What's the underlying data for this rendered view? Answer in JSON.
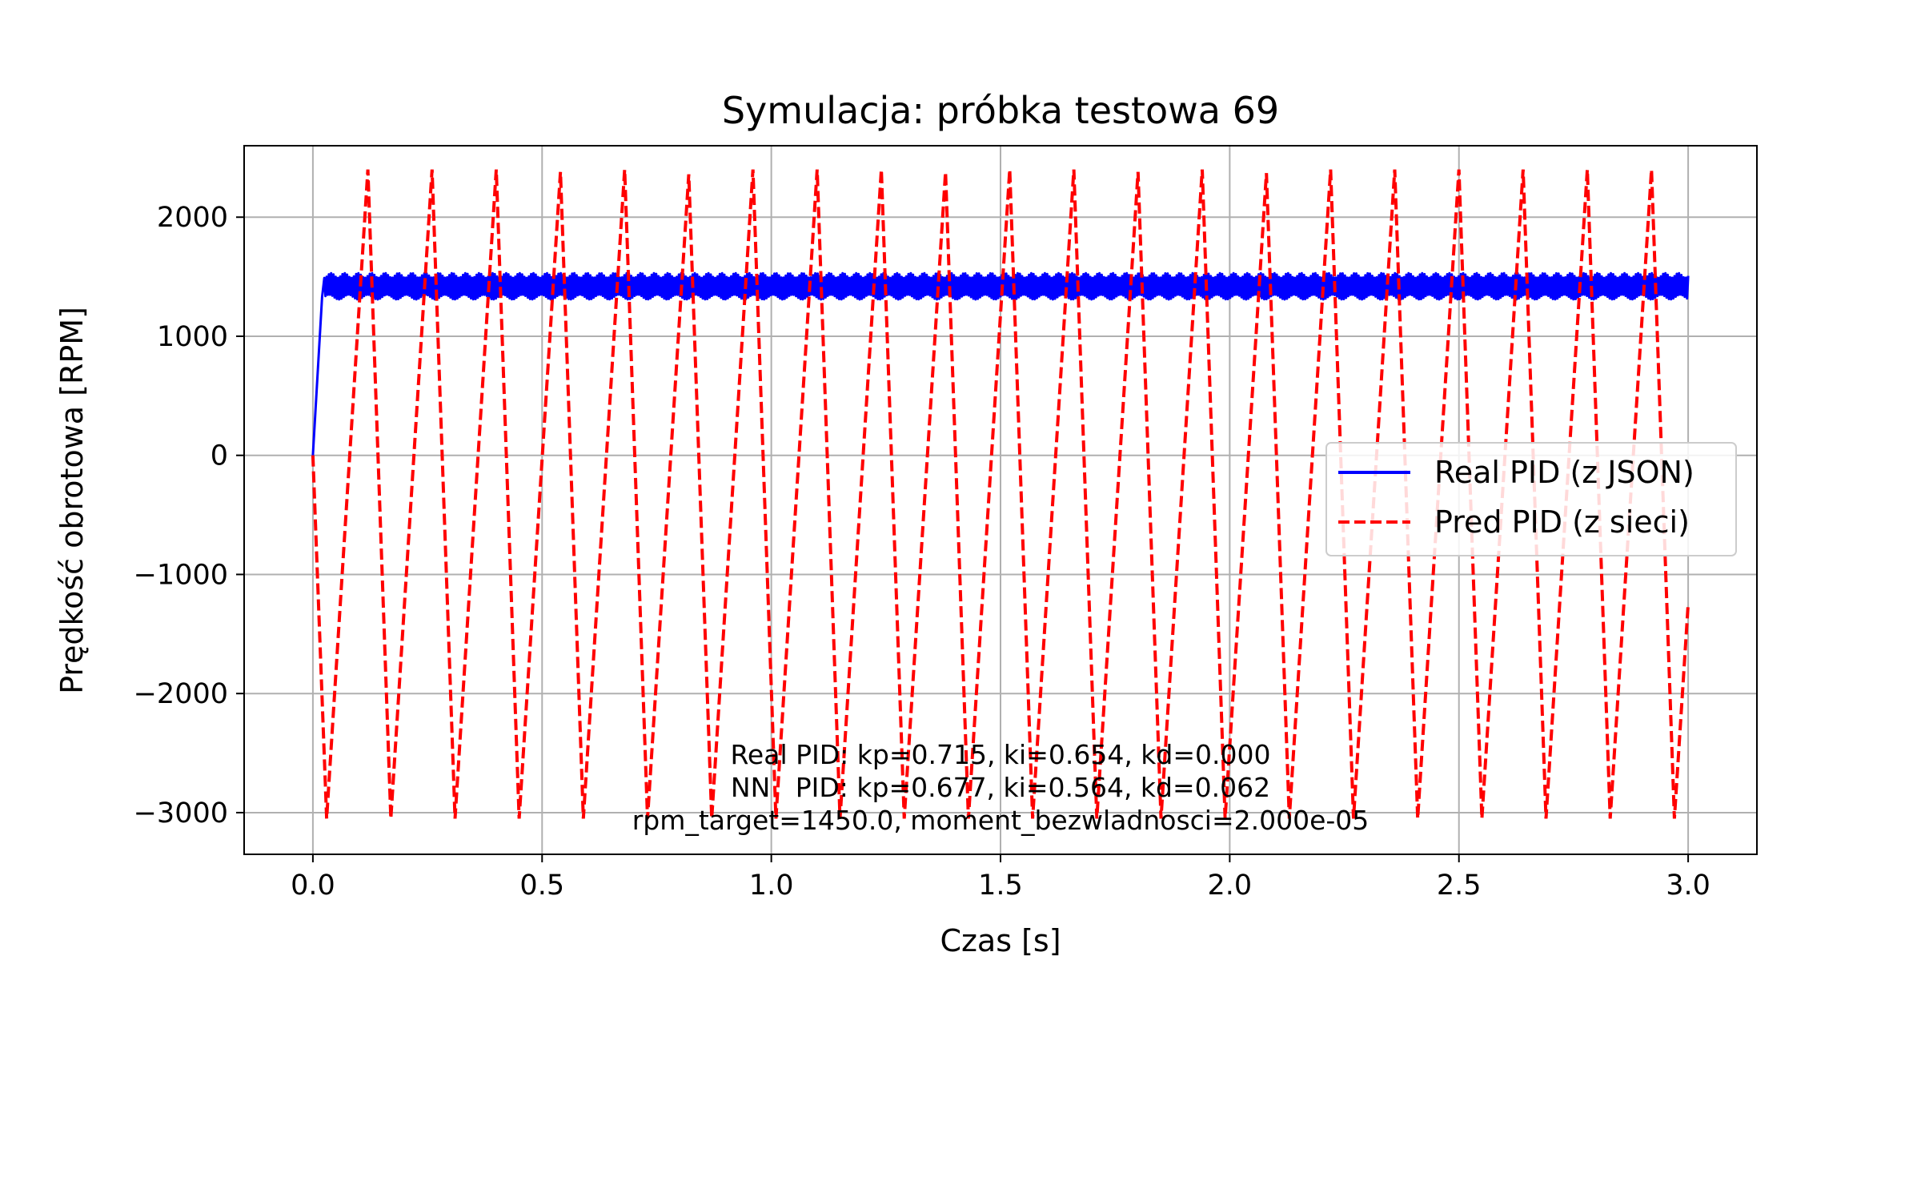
{
  "chart_data": {
    "type": "line",
    "title": "Symulacja: próbka testowa 69",
    "xlabel": "Czas [s]",
    "ylabel": "Prędkość obrotowa [RPM]",
    "xlim": [
      -0.15,
      3.15
    ],
    "ylim": [
      -3350,
      2600
    ],
    "xticks": [
      0.0,
      0.5,
      1.0,
      1.5,
      2.0,
      2.5,
      3.0
    ],
    "xtick_labels": [
      "0.0",
      "0.5",
      "1.0",
      "1.5",
      "2.0",
      "2.5",
      "3.0"
    ],
    "yticks": [
      2000,
      1000,
      0,
      -1000,
      -2000,
      -3000
    ],
    "ytick_labels": [
      "2000",
      "1000",
      "0",
      "−1000",
      "−2000",
      "−3000"
    ],
    "grid": true,
    "legend_position": "right",
    "series": [
      {
        "name": "Real PID (z JSON)",
        "color": "#0000ff",
        "style": "solid",
        "description": "rise from 0 to ~1400 RPM by t≈0.02 s, then noisy band 1330–1510 RPM until t=3.0",
        "x": [
          0.0,
          0.02,
          0.025,
          3.0
        ],
        "y": [
          0,
          1330,
          1430,
          1430
        ],
        "band_low": 1330,
        "band_high": 1510
      },
      {
        "name": "Pred PID (z sieci)",
        "color": "#ff0000",
        "style": "dashed",
        "x": [
          0.0,
          0.03,
          0.12,
          0.17,
          0.26,
          0.31,
          0.4,
          0.45,
          0.54,
          0.59,
          0.68,
          0.73,
          0.82,
          0.87,
          0.96,
          1.01,
          1.1,
          1.15,
          1.24,
          1.29,
          1.38,
          1.43,
          1.52,
          1.57,
          1.66,
          1.71,
          1.8,
          1.85,
          1.94,
          1.99,
          2.08,
          2.13,
          2.22,
          2.27,
          2.36,
          2.41,
          2.5,
          2.55,
          2.64,
          2.69,
          2.78,
          2.83,
          2.92,
          2.97,
          3.0
        ],
        "y": [
          0,
          -3050,
          2400,
          -3050,
          2400,
          -3050,
          2400,
          -3050,
          2380,
          -3050,
          2400,
          -3050,
          2360,
          -3050,
          2400,
          -3050,
          2400,
          -3050,
          2400,
          -3050,
          2380,
          -3050,
          2400,
          -3050,
          2400,
          -3050,
          2380,
          -3050,
          2400,
          -3050,
          2370,
          -3050,
          2400,
          -3050,
          2400,
          -3050,
          2400,
          -3050,
          2400,
          -3050,
          2400,
          -3050,
          2400,
          -3050,
          -1250
        ]
      }
    ],
    "annotation": [
      "Real PID: kp=0.715, ki=0.654, kd=0.000",
      "NN   PID: kp=0.677, ki=0.564, kd=0.062",
      "rpm_target=1450.0, moment_bezwladnosci=2.000e-05"
    ]
  }
}
